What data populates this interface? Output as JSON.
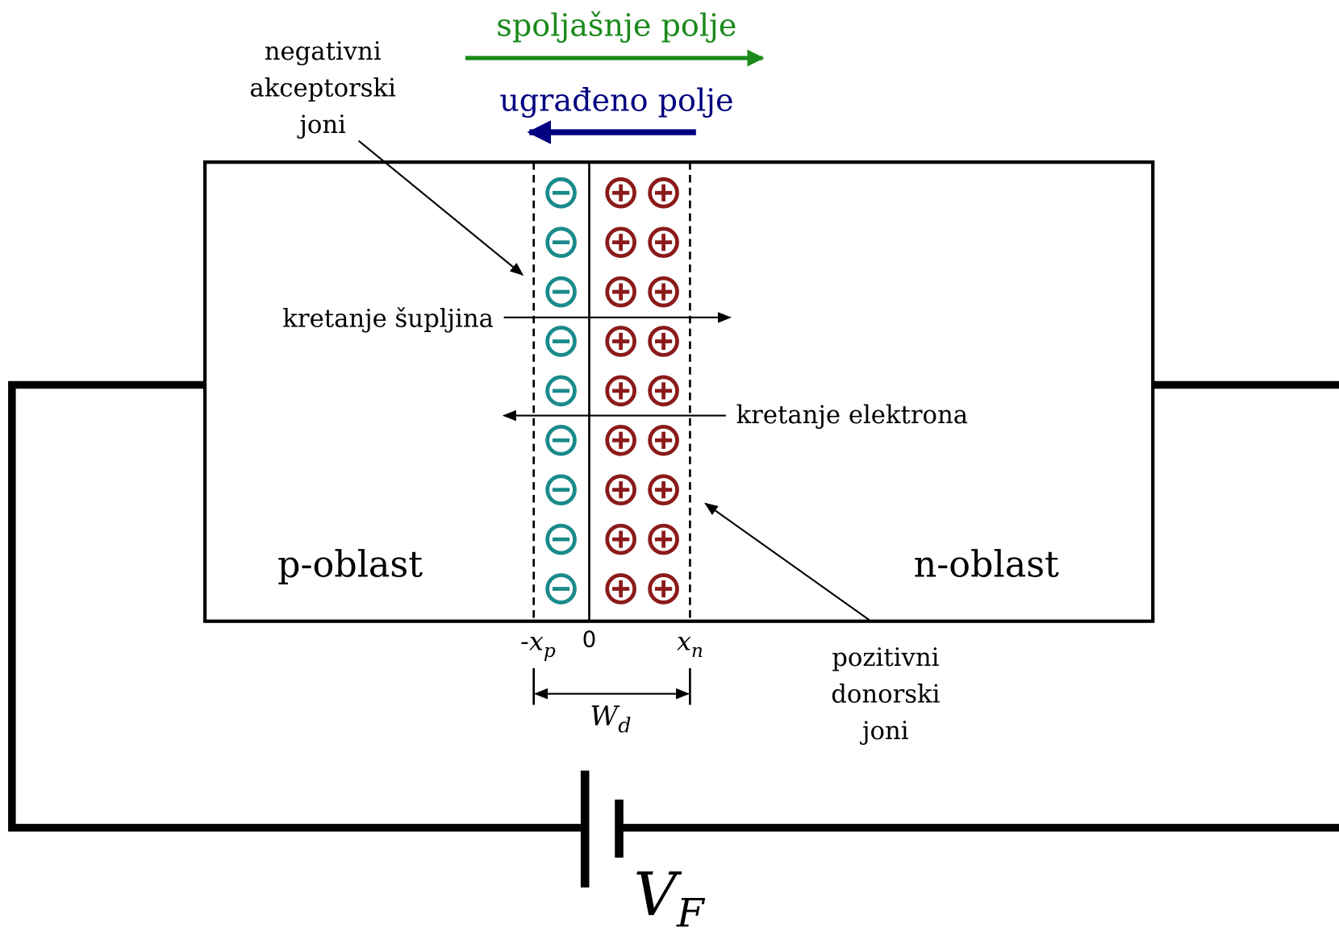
{
  "labels": {
    "external_field": "spoljašnje polje",
    "built_in_field": "ugrađeno polje",
    "acceptor_ions": [
      "negativni",
      "akceptorski",
      "joni"
    ],
    "donor_ions": [
      "pozitivni",
      "donorski",
      "joni"
    ],
    "hole_motion": "kretanje šupljina",
    "electron_motion": "kretanje elektrona",
    "p_region": "p-oblast",
    "n_region": "n-oblast"
  },
  "axis": {
    "xp": "-x",
    "xp_sub": "p",
    "zero": "0",
    "xn": "x",
    "xn_sub": "n",
    "wd": "W",
    "wd_sub": "d"
  },
  "voltage": {
    "symbol": "V",
    "sub": "F"
  }
}
